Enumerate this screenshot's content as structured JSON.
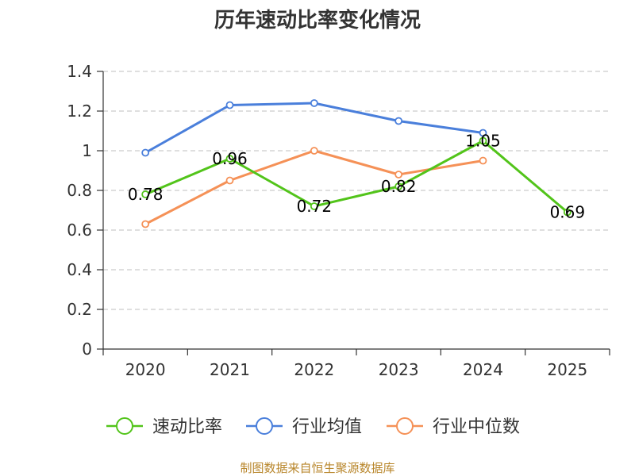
{
  "chart_data": {
    "type": "line",
    "title": "历年速动比率变化情况",
    "categories": [
      "2020",
      "2021",
      "2022",
      "2023",
      "2024",
      "2025"
    ],
    "ylim": [
      0,
      1.4
    ],
    "yticks": [
      "0",
      "0.2",
      "0.4",
      "0.6",
      "0.8",
      "1",
      "1.2",
      "1.4"
    ],
    "grid": true,
    "legend_position": "bottom",
    "series": [
      {
        "name": "速动比率",
        "color": "#52c41a",
        "values": [
          0.78,
          0.96,
          0.72,
          0.82,
          1.05,
          0.69
        ],
        "labels": [
          "0.78",
          "0.96",
          "0.72",
          "0.82",
          "1.05",
          "0.69"
        ]
      },
      {
        "name": "行业均值",
        "color": "#4a7fdb",
        "values": [
          0.99,
          1.23,
          1.24,
          1.15,
          1.09,
          null
        ]
      },
      {
        "name": "行业中位数",
        "color": "#f59157",
        "values": [
          0.63,
          0.85,
          1.0,
          0.88,
          0.95,
          null
        ]
      }
    ],
    "source": "制图数据来自恒生聚源数据库"
  }
}
